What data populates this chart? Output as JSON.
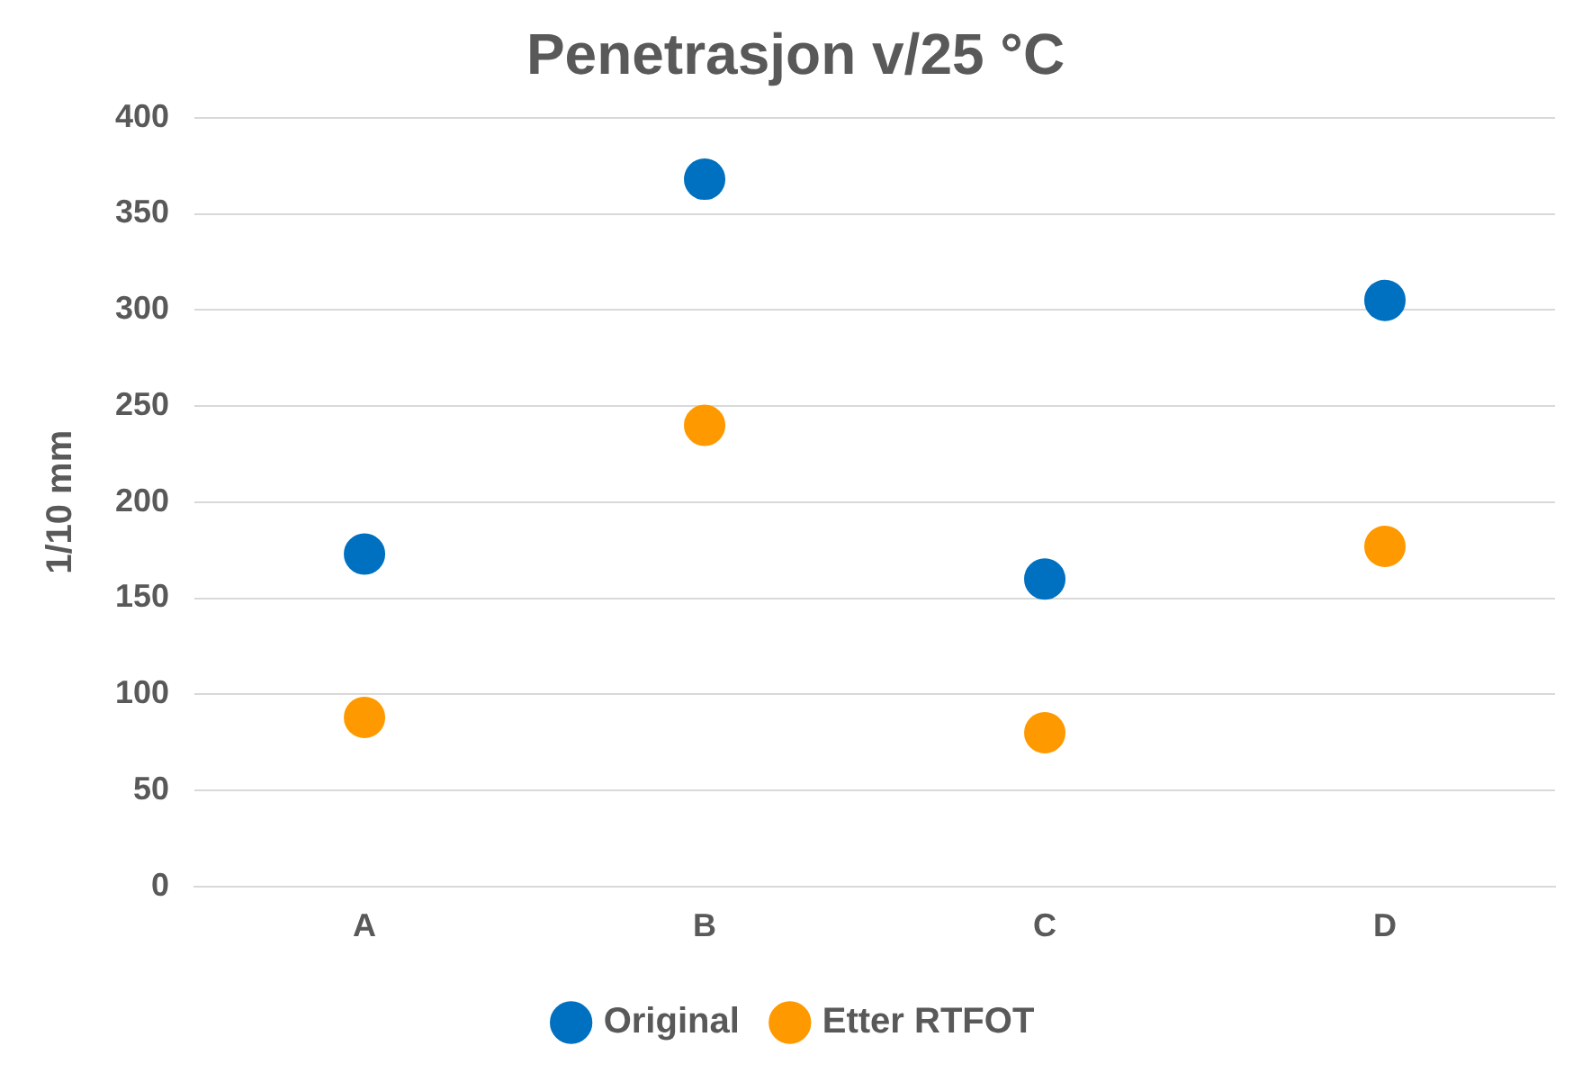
{
  "chart_data": {
    "type": "scatter",
    "title": "Penetrasjon v/25 °C",
    "ylabel": "1/10 mm",
    "categories": [
      "A",
      "B",
      "C",
      "D"
    ],
    "series": [
      {
        "name": "Original",
        "color": "#0070c0",
        "values": [
          173,
          368,
          160,
          305
        ]
      },
      {
        "name": "Etter RTFOT",
        "color": "#ff9900",
        "values": [
          88,
          240,
          80,
          177
        ]
      }
    ],
    "ylim": [
      0,
      400
    ],
    "yticks": [
      0,
      50,
      100,
      150,
      200,
      250,
      300,
      350,
      400
    ],
    "grid": "y",
    "legend": "bottom",
    "marker": "circle"
  }
}
